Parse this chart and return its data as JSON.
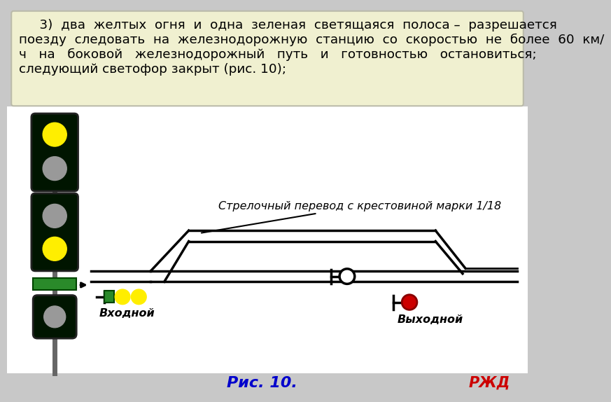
{
  "bg_color": "#c8c8c8",
  "text_bg_color": "#f0f0d0",
  "text_content": "     3)  два  желтых  огня  и  одна  зеленая  светящаяся  полоса –  разрешается\nпоезду  следовать  на  железнодорожную  станцию  со  скоростью  не  более  60  км/\nч   на   боковой   железнодорожный   путь   и   готовностью   остановиться;\nследующий светофор закрыт (рис. 10);",
  "caption": "Рис. 10.",
  "caption_color": "#0000cc",
  "arrow_label": "Стрелочный перевод с крестовиной марки 1/18",
  "входной_label": "Входной",
  "выходной_label": "Выходной",
  "rjd_color": "#cc0000",
  "signal_bg": "#001500",
  "yellow_color": "#ffee00",
  "gray_color": "#999999",
  "green_color": "#2a8a2a",
  "red_color": "#cc0000",
  "white_color": "#ffffff",
  "black_color": "#000000"
}
